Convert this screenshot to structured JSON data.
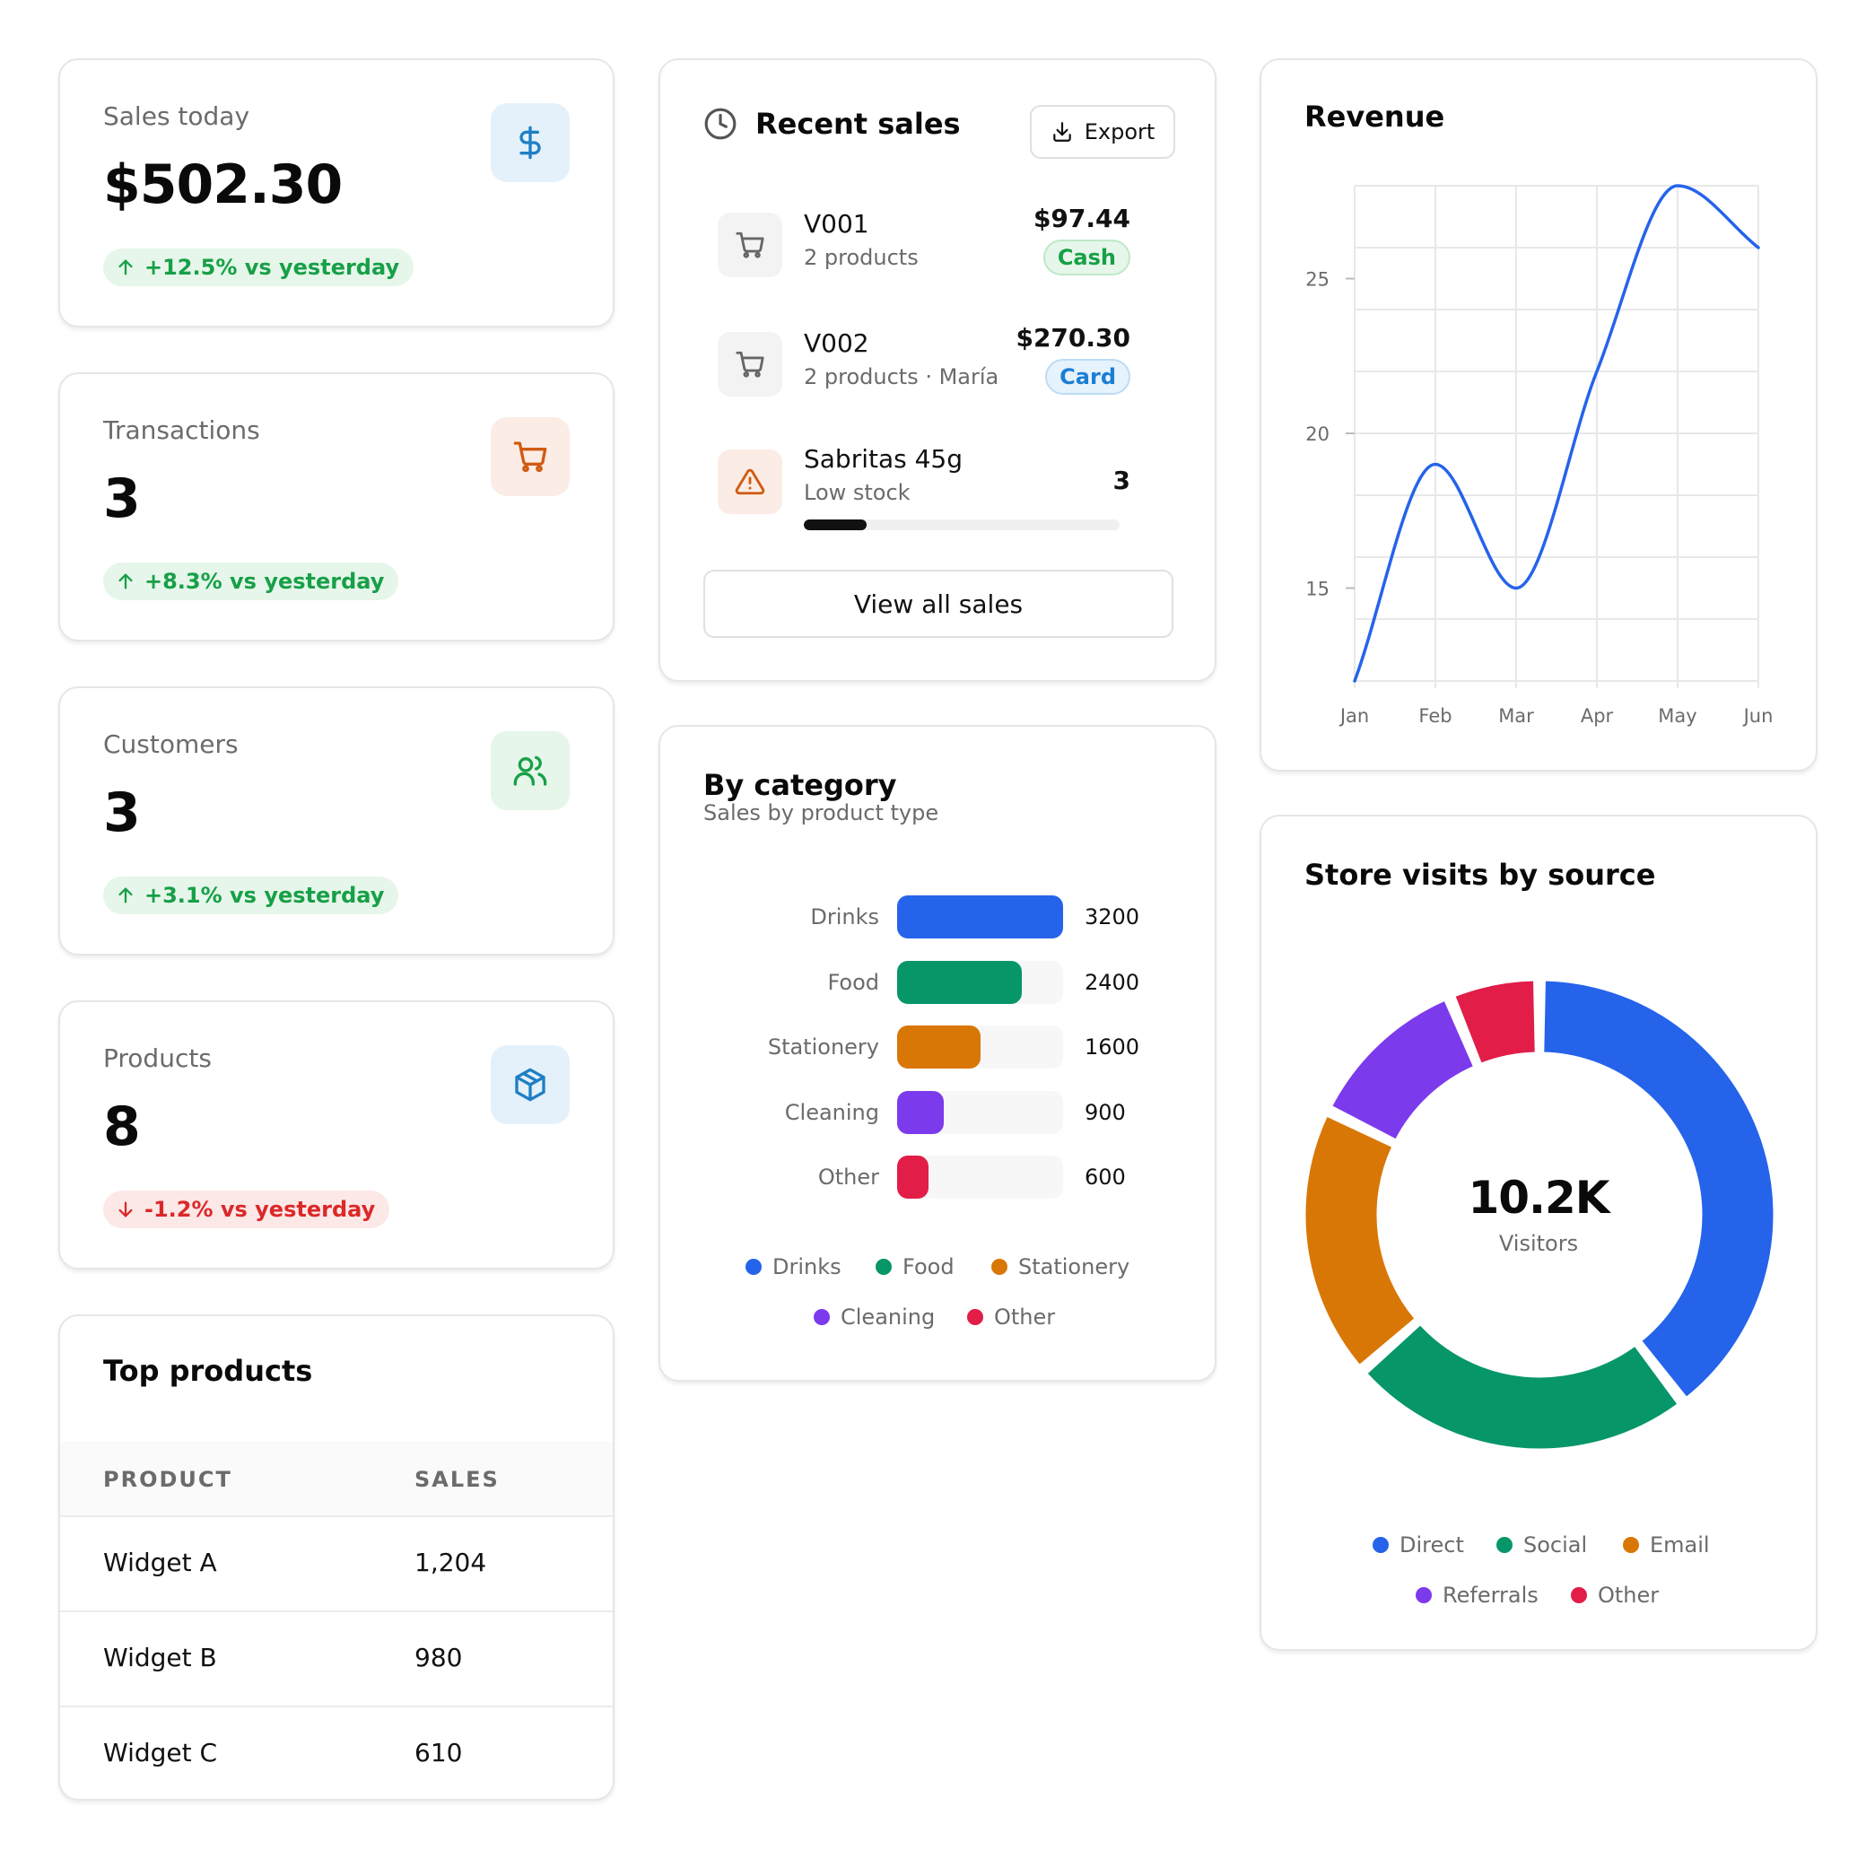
{
  "stats": [
    {
      "label": "Sales today",
      "value": "$502.30",
      "change": "+12.5% vs yesterday",
      "direction": "up",
      "icon": "dollar-icon",
      "icon_bg": "#e4f1fb",
      "icon_color": "#1f7fc4"
    },
    {
      "label": "Transactions",
      "value": "3",
      "change": "+8.3% vs yesterday",
      "direction": "up",
      "icon": "cart-icon",
      "icon_bg": "#fbece5",
      "icon_color": "#d05b12"
    },
    {
      "label": "Customers",
      "value": "3",
      "change": "+3.1% vs yesterday",
      "direction": "up",
      "icon": "users-icon",
      "icon_bg": "#e6f6ea",
      "icon_color": "#17a047"
    },
    {
      "label": "Products",
      "value": "8",
      "change": "-1.2% vs yesterday",
      "direction": "down",
      "icon": "box-icon",
      "icon_bg": "#e4f1fb",
      "icon_color": "#1f7fc4"
    }
  ],
  "top_products": {
    "title": "Top products",
    "columns": [
      "PRODUCT",
      "SALES"
    ],
    "rows": [
      {
        "product": "Widget A",
        "sales": "1,204"
      },
      {
        "product": "Widget B",
        "sales": "980"
      },
      {
        "product": "Widget C",
        "sales": "610"
      }
    ]
  },
  "recent_sales": {
    "title": "Recent sales",
    "export_label": "Export",
    "items": [
      {
        "title": "V001",
        "subtitle": "2 products",
        "amount": "$97.44",
        "badge": "Cash",
        "icon": "cart-icon"
      },
      {
        "title": "V002",
        "subtitle": "2 products · María",
        "amount": "$270.30",
        "badge": "Card",
        "icon": "cart-icon"
      }
    ],
    "alert": {
      "title": "Sabritas 45g",
      "subtitle": "Low stock",
      "count": "3",
      "level": 0.2,
      "icon": "warning-icon"
    },
    "view_all_label": "View all sales"
  },
  "by_category": {
    "title": "By category",
    "subtitle": "Sales by product type",
    "colors": [
      "#2563eb",
      "#079669",
      "#d97706",
      "#7c3aed",
      "#e11d48"
    ],
    "chart_data": {
      "type": "bar",
      "orientation": "horizontal",
      "categories": [
        "Drinks",
        "Food",
        "Stationery",
        "Cleaning",
        "Other"
      ],
      "values": [
        3200,
        2400,
        1600,
        900,
        600
      ],
      "xlim": [
        0,
        3200
      ],
      "legend": [
        "Drinks",
        "Food",
        "Stationery",
        "Cleaning",
        "Other"
      ],
      "legend_position": "bottom"
    }
  },
  "revenue": {
    "title": "Revenue",
    "color": "#2563eb",
    "chart_data": {
      "type": "line",
      "x": [
        "Jan",
        "Feb",
        "Mar",
        "Apr",
        "May",
        "Jun"
      ],
      "y": [
        12,
        19,
        15,
        22,
        28,
        26
      ],
      "ylim": [
        12,
        28
      ],
      "yticks": [
        "15",
        "20",
        "25"
      ],
      "ytick_values": [
        15,
        20,
        25
      ],
      "grid": true,
      "smooth": true
    }
  },
  "store_visits": {
    "title": "Store visits by source",
    "center_value": "10.2K",
    "center_label": "Visitors",
    "colors": [
      "#2563eb",
      "#079669",
      "#d97706",
      "#7c3aed",
      "#e11d48"
    ],
    "chart_data": {
      "type": "pie",
      "style": "donut",
      "labels": [
        "Direct",
        "Social",
        "Email",
        "Referrals",
        "Other"
      ],
      "values": [
        38,
        23,
        18,
        11,
        6
      ],
      "legend_position": "bottom"
    }
  }
}
